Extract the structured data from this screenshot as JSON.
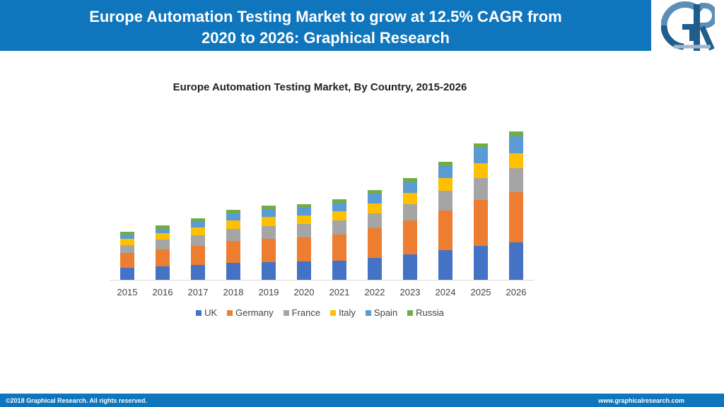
{
  "header": {
    "title_line1": "Europe Automation Testing Market to grow at 12.5% CAGR from",
    "title_line2": "2020 to 2026: Graphical Research",
    "logo_icon": "graphical-research-logo-icon"
  },
  "footer": {
    "copyright": "©2018 Graphical Research. All rights reserved.",
    "website": "www.graphicalresearch.com"
  },
  "colors": {
    "header_bg": "#0f75bc",
    "UK": "#4472c4",
    "Germany": "#ed7d31",
    "France": "#a5a5a5",
    "Italy": "#ffc000",
    "Spain": "#5b9bd5",
    "Russia": "#70ad47"
  },
  "chart_data": {
    "type": "bar",
    "stacked": true,
    "title": "Europe Automation  Testing Market, By Country, 2015-2026",
    "categories": [
      "2015",
      "2016",
      "2017",
      "2018",
      "2019",
      "2020",
      "2021",
      "2022",
      "2023",
      "2024",
      "2025",
      "2026"
    ],
    "series": [
      {
        "name": "UK",
        "color": "#4472c4",
        "values": [
          17,
          19,
          21,
          24,
          25,
          26,
          27,
          31,
          36,
          42,
          48,
          53
        ]
      },
      {
        "name": "Germany",
        "color": "#ed7d31",
        "values": [
          21,
          24,
          27,
          31,
          33,
          34,
          37,
          42,
          48,
          56,
          65,
          71
        ]
      },
      {
        "name": "France",
        "color": "#a5a5a5",
        "values": [
          11,
          14,
          15,
          17,
          18,
          19,
          20,
          21,
          23,
          28,
          31,
          34
        ]
      },
      {
        "name": "Italy",
        "color": "#ffc000",
        "values": [
          9,
          9,
          11,
          12,
          13,
          12,
          13,
          14,
          16,
          18,
          21,
          21
        ]
      },
      {
        "name": "Spain",
        "color": "#5b9bd5",
        "values": [
          6,
          6,
          8,
          10,
          11,
          11,
          12,
          14,
          15,
          17,
          22,
          24
        ]
      },
      {
        "name": "Russia",
        "color": "#70ad47",
        "values": [
          4,
          5,
          5,
          5,
          5,
          5,
          5,
          5,
          6,
          6,
          6,
          7
        ]
      }
    ],
    "grid": false,
    "y_axis_shown": false,
    "legend_position": "bottom"
  }
}
